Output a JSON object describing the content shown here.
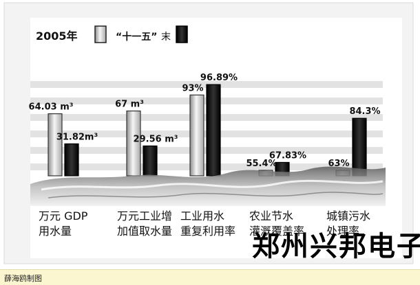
{
  "chart_data": {
    "type": "bar",
    "legend": {
      "year_label": "2005年",
      "end_label_quoted": "“十一五”",
      "end_label_suffix": "末",
      "placement": "top-left"
    },
    "categories": [
      [
        "万元 GDP",
        "用水量"
      ],
      [
        "万元工业增",
        "加值取水量"
      ],
      [
        "工业用水",
        "重复利用率"
      ],
      [
        "农业节水",
        "灌溉覆盖率"
      ],
      [
        "城镇污水",
        "处理率"
      ]
    ],
    "series": [
      {
        "name": "2005年",
        "values": [
          64.03,
          67,
          93,
          55.4,
          63
        ],
        "labels": [
          "64.03 m³",
          "67 m³",
          "93%",
          "55.4%",
          "63%"
        ]
      },
      {
        "name": "“十一五”末",
        "values": [
          31.82,
          29.56,
          96.89,
          67.83,
          84.3
        ],
        "labels": [
          "31.82m³",
          "29.56 m³",
          "96.89%",
          "67.83%",
          "84.3%"
        ]
      }
    ],
    "grid": true
  },
  "watermark": "郑州兴邦电子",
  "caption": "薛海鸥制图",
  "colors": {
    "background": "#ffffff",
    "panel": "#f2f2f2",
    "stripe": "#dedede",
    "bar_2005_light": "#f4f4f4",
    "bar_2005_dark": "#9a9a9a",
    "bar_2010": "#060606",
    "caption_bg": "#fbf6cf"
  }
}
